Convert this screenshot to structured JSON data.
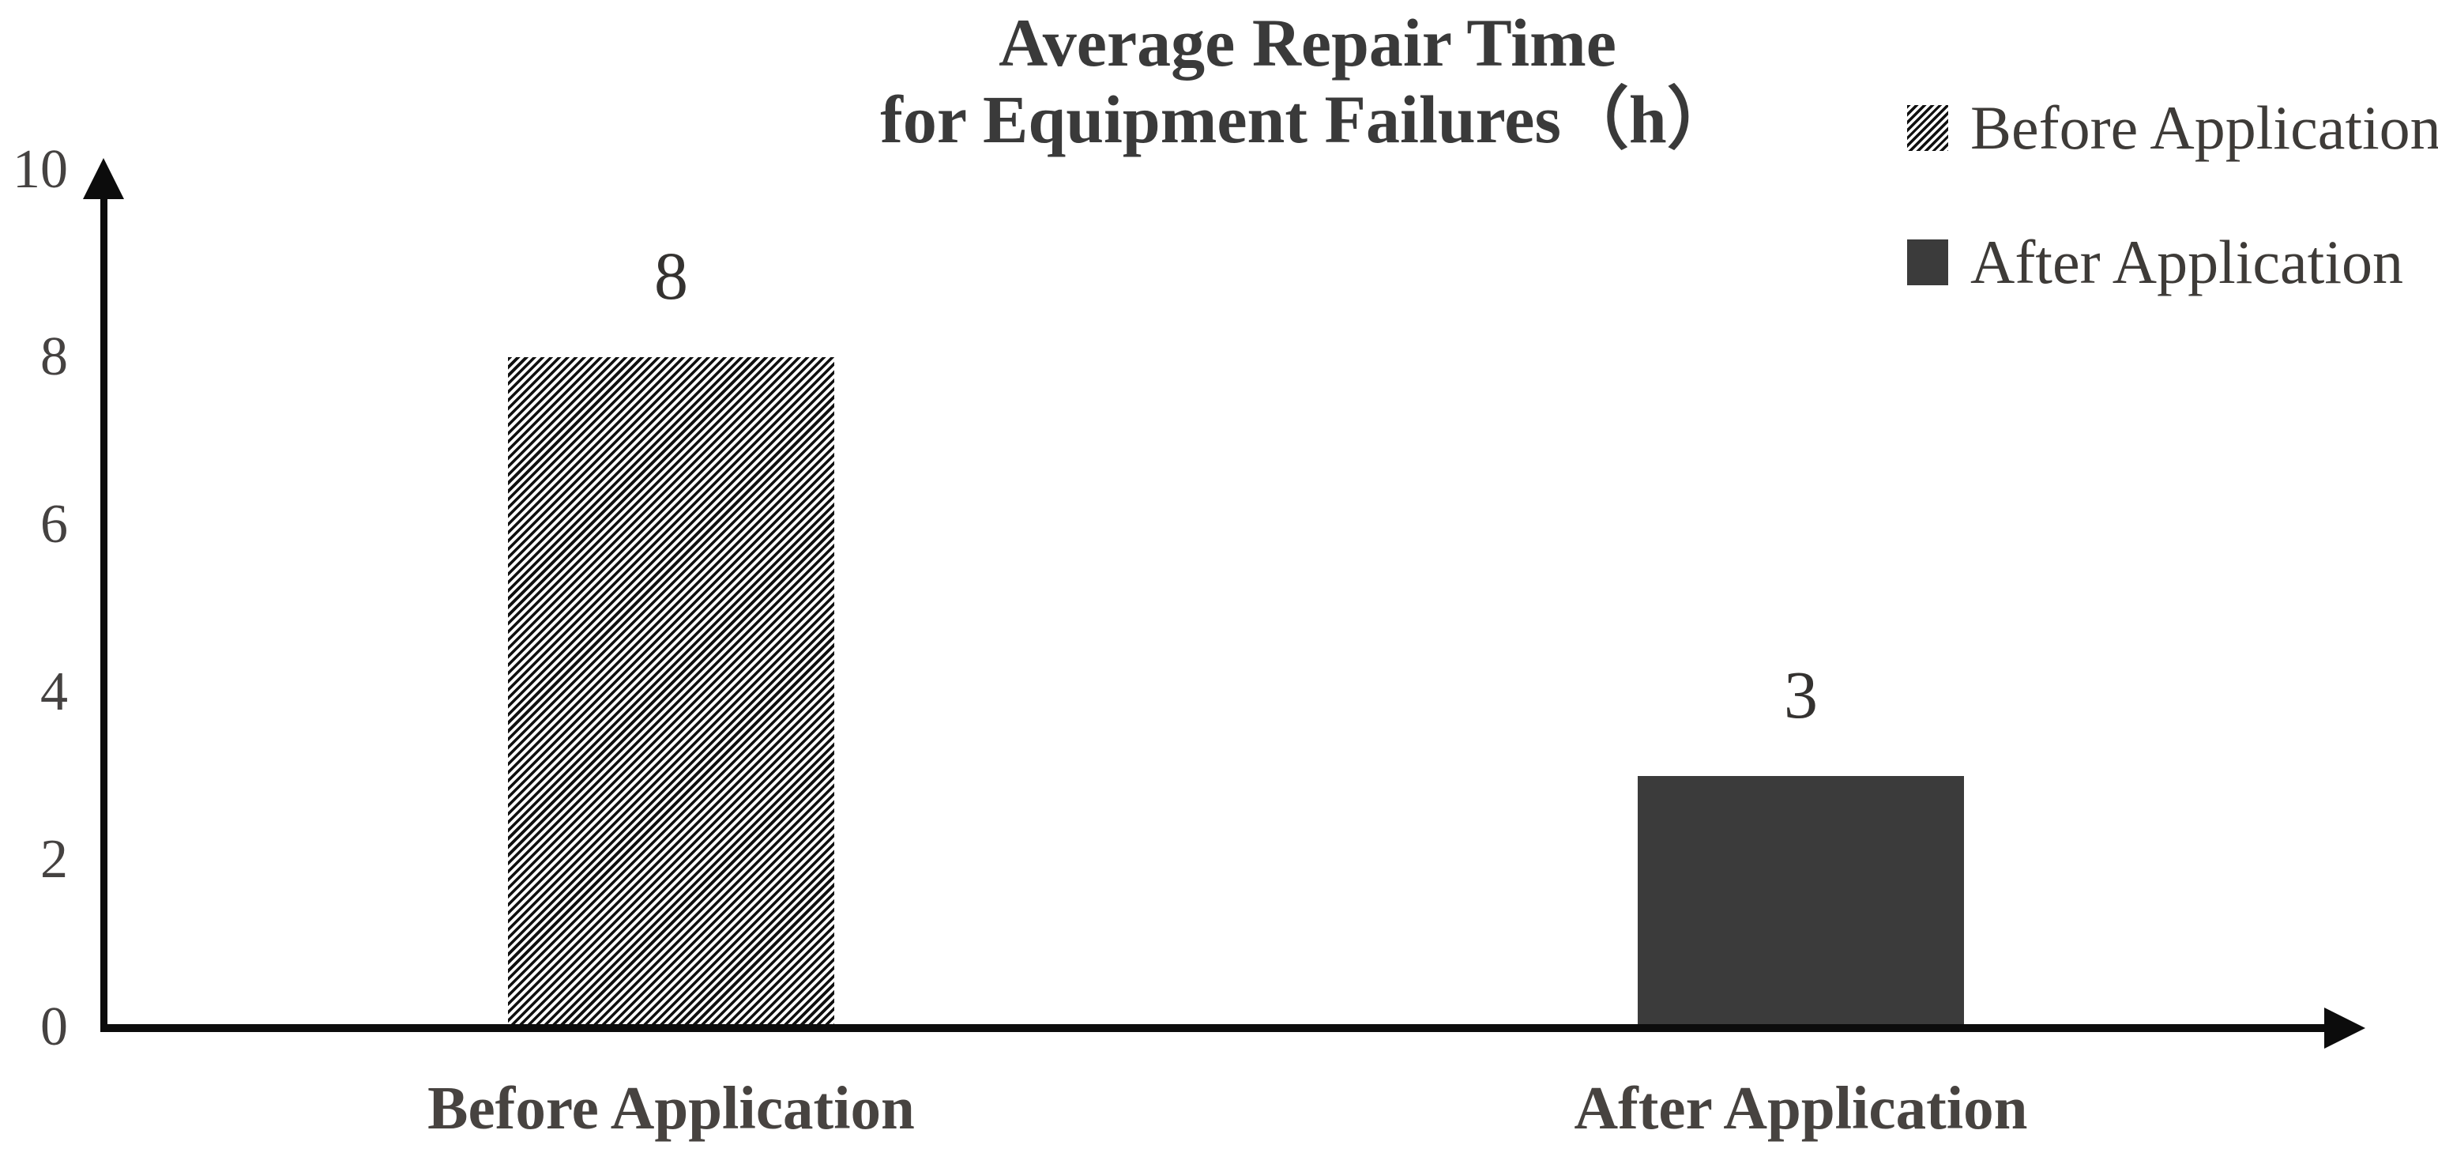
{
  "title": {
    "line1": "Average Repair Time",
    "line2": "for Equipment Failures（h）"
  },
  "legend": {
    "items": [
      {
        "label": "Before Application",
        "swatch": "hatched"
      },
      {
        "label": "After Application",
        "swatch": "solid"
      }
    ]
  },
  "chart_data": {
    "type": "bar",
    "title": "Average Repair Time for Equipment Failures (h)",
    "categories": [
      "Before Application",
      "After Application"
    ],
    "values": [
      8,
      3
    ],
    "data_labels": [
      "8",
      "3"
    ],
    "xlabel": "",
    "ylabel": "",
    "ylim": [
      0,
      10
    ],
    "yticks": [
      0,
      2,
      4,
      6,
      8,
      10
    ],
    "grid": false,
    "legend_position": "top-right",
    "bar_styles": [
      "hatched",
      "solid"
    ],
    "colors": {
      "solid_bar": "#3b3b3b",
      "hatch_foreground": "#101010",
      "hatch_background": "#ffffff",
      "axis": "#0c0c0c",
      "text": "#3a3a3a"
    }
  }
}
